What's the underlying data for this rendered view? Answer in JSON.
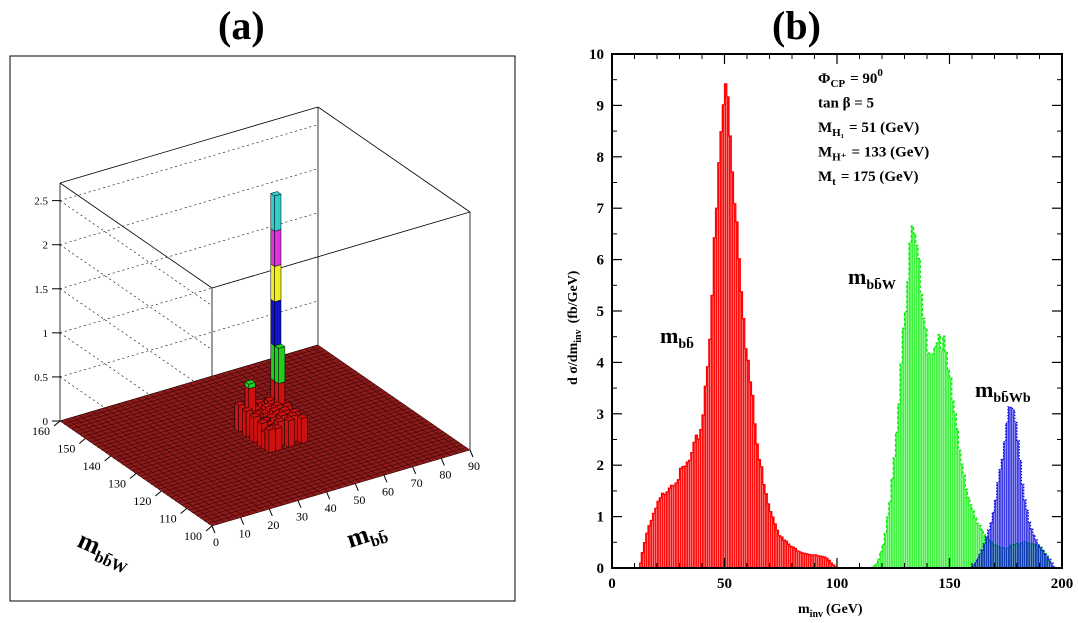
{
  "panels": {
    "a": {
      "label": "(a)"
    },
    "b": {
      "label": "(b)"
    }
  },
  "chart_data": [
    {
      "panel": "(a)",
      "type": "lego3d",
      "axes": {
        "x": {
          "label": "m",
          "label_sub": "bb̄",
          "range": [
            100,
            160
          ],
          "ticks": [
            "100",
            "110",
            "120",
            "130",
            "140",
            "150",
            "160"
          ]
        },
        "y": {
          "label": "m",
          "label_sub": "bb̄",
          "range": [
            0,
            90
          ],
          "ticks": [
            "0",
            "10",
            "20",
            "30",
            "40",
            "50",
            "60",
            "70",
            "80",
            "90"
          ]
        },
        "z": {
          "range": [
            0,
            2.7
          ],
          "ticks": [
            "0",
            "0.5",
            "1",
            "1.5",
            "2",
            "2.5"
          ]
        }
      },
      "x_label_text": "m",
      "x_label_sub": "bb̄W",
      "y_label_text": "m",
      "y_label_sub": "bb̄",
      "peak": {
        "x": 133,
        "y": 51,
        "z": 2.6
      },
      "tower_color_bands": [
        {
          "from": 0.0,
          "to": 0.5,
          "color": "#cc1111"
        },
        {
          "from": 0.5,
          "to": 0.9,
          "color": "#22cc22"
        },
        {
          "from": 0.9,
          "to": 1.4,
          "color": "#1111cc"
        },
        {
          "from": 1.4,
          "to": 1.8,
          "color": "#eeee22"
        },
        {
          "from": 1.8,
          "to": 2.2,
          "color": "#dd33dd"
        },
        {
          "from": 2.2,
          "to": 2.7,
          "color": "#33cccc"
        }
      ],
      "floor_color": "#8b1a1a"
    },
    {
      "panel": "(b)",
      "type": "histogram",
      "xlabel": "m",
      "xlabel_sub": "inv",
      "xlabel_unit": "(GeV)",
      "ylabel": "d σ/dm",
      "ylabel_sub": "inv",
      "ylabel_unit": "(fb/GeV)",
      "xlim": [
        0,
        200
      ],
      "ylim": [
        0,
        10
      ],
      "x_ticks": [
        "0",
        "50",
        "100",
        "150",
        "200"
      ],
      "y_ticks": [
        "0",
        "1",
        "2",
        "3",
        "4",
        "5",
        "6",
        "7",
        "8",
        "9",
        "10"
      ],
      "annotations": [
        {
          "main": "Φ",
          "sub": "CP",
          "rest": "= 90",
          "sup": "0"
        },
        {
          "main": "tan β = 5",
          "sub": "",
          "rest": "",
          "sup": ""
        },
        {
          "main": "M",
          "sub": "H₁",
          "rest": "= 51   (GeV)",
          "sup": ""
        },
        {
          "main": "M",
          "sub": "H⁺",
          "rest": "= 133 (GeV)",
          "sup": ""
        },
        {
          "main": "M",
          "sub": "t",
          "rest": "= 175 (GeV)",
          "sup": ""
        }
      ],
      "series": [
        {
          "name": "bb̄",
          "label_main": "m",
          "label_sub": "bb̄",
          "color": "#ff0000",
          "style": "solid",
          "x": [
            12,
            15,
            20,
            25,
            30,
            35,
            40,
            43,
            46,
            49,
            51,
            53,
            56,
            60,
            65,
            70,
            75,
            80,
            85,
            90,
            95,
            100
          ],
          "values": [
            0.0,
            0.6,
            1.2,
            1.6,
            1.8,
            2.1,
            2.8,
            4.3,
            6.5,
            8.8,
            9.4,
            8.2,
            6.5,
            4.2,
            2.2,
            1.2,
            0.6,
            0.4,
            0.3,
            0.25,
            0.2,
            0.0
          ]
        },
        {
          "name": "bb̄W",
          "label_main": "m",
          "label_sub": "bb̄W",
          "color": "#00ee00",
          "style": "dashed",
          "x": [
            115,
            118,
            121,
            124,
            127,
            130,
            133,
            134,
            136,
            138,
            140,
            143,
            146,
            149,
            152,
            155,
            158,
            162,
            166,
            170,
            175,
            180,
            185,
            190,
            195
          ],
          "values": [
            0.0,
            0.1,
            0.5,
            1.4,
            3.0,
            5.0,
            6.5,
            6.6,
            6.0,
            5.0,
            4.4,
            4.3,
            4.6,
            4.0,
            3.0,
            2.2,
            1.5,
            0.9,
            0.6,
            0.45,
            0.4,
            0.45,
            0.5,
            0.45,
            0.1
          ]
        },
        {
          "name": "bb̄Wb",
          "label_main": "m",
          "label_sub": "bb̄Wb",
          "color": "#0000dd",
          "style": "dotted",
          "x": [
            160,
            163,
            166,
            169,
            172,
            175,
            177,
            179,
            181,
            183,
            185,
            188,
            191,
            194,
            197
          ],
          "values": [
            0.0,
            0.2,
            0.5,
            1.0,
            1.8,
            2.7,
            3.1,
            2.9,
            2.2,
            1.5,
            1.0,
            0.6,
            0.35,
            0.2,
            0.0
          ]
        }
      ]
    }
  ]
}
